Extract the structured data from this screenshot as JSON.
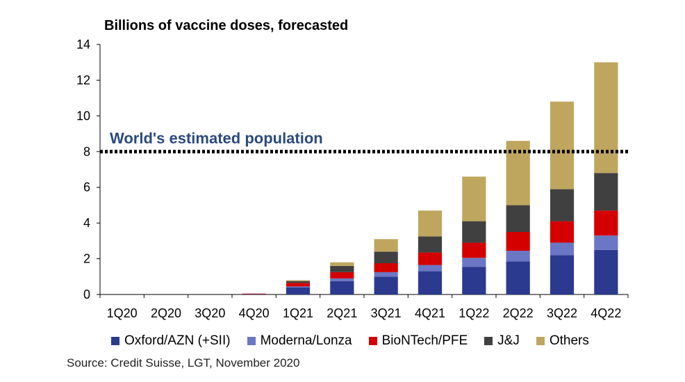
{
  "chart_data": {
    "type": "bar",
    "stacked": true,
    "title": "Billions of vaccine doses, forecasted",
    "source": "Source:  Credit Suisse, LGT, November 2020",
    "categories": [
      "1Q20",
      "2Q20",
      "3Q20",
      "4Q20",
      "1Q21",
      "2Q21",
      "3Q21",
      "4Q21",
      "1Q22",
      "2Q22",
      "3Q22",
      "4Q22"
    ],
    "ylim": [
      0,
      14
    ],
    "yticks": [
      0,
      2,
      4,
      6,
      8,
      10,
      12,
      14
    ],
    "series": [
      {
        "name": "Oxford/AZN (+SII)",
        "color": "#2b3a8f",
        "values": [
          0,
          0,
          0,
          0.02,
          0.4,
          0.75,
          1.0,
          1.3,
          1.55,
          1.85,
          2.2,
          2.5
        ]
      },
      {
        "name": "Moderna/Lonza",
        "color": "#6b77c4",
        "values": [
          0,
          0,
          0,
          0,
          0.05,
          0.15,
          0.25,
          0.35,
          0.5,
          0.6,
          0.7,
          0.8
        ]
      },
      {
        "name": "BioNTech/PFE",
        "color": "#d40000",
        "values": [
          0,
          0,
          0,
          0.03,
          0.2,
          0.35,
          0.5,
          0.7,
          0.85,
          1.05,
          1.2,
          1.4
        ]
      },
      {
        "name": "J&J",
        "color": "#404040",
        "values": [
          0,
          0,
          0,
          0,
          0.1,
          0.35,
          0.65,
          0.9,
          1.2,
          1.5,
          1.8,
          2.1
        ]
      },
      {
        "name": "Others",
        "color": "#bfa65e",
        "values": [
          0,
          0,
          0,
          0,
          0.05,
          0.2,
          0.7,
          1.45,
          2.5,
          3.6,
          4.9,
          6.2
        ]
      }
    ],
    "reference_line": {
      "label": "World's estimated population",
      "value": 8
    }
  }
}
